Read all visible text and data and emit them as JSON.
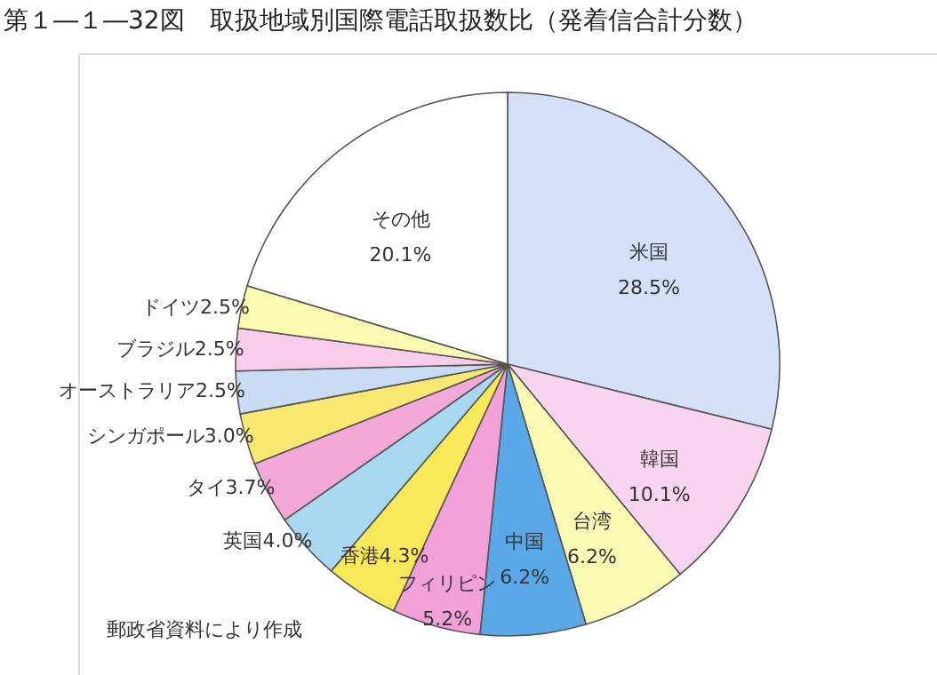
{
  "chart_data": {
    "type": "pie",
    "title": "第１―１―32図　取扱地域別国際電話取扱数比（発着信合計分数）",
    "categories": [
      "米国",
      "韓国",
      "台湾",
      "中国",
      "フィリピン",
      "香港",
      "英国",
      "タイ",
      "シンガポール",
      "オーストラリア",
      "ブラジル",
      "ドイツ",
      "その他"
    ],
    "values": [
      28.5,
      10.1,
      6.2,
      6.2,
      5.2,
      4.3,
      4.0,
      3.7,
      3.0,
      2.5,
      2.5,
      2.5,
      20.1
    ],
    "value_labels": [
      "28.5%",
      "10.1%",
      "6.2%",
      "6.2%",
      "5.2%",
      "4.3%",
      "4.0%",
      "3.7%",
      "3.0%",
      "2.5%",
      "2.5%",
      "2.5%",
      "20.1%"
    ],
    "colors": [
      "#d4e0f7",
      "#f9d4ee",
      "#fafab4",
      "#5aa8e8",
      "#f2a0d8",
      "#f8e85a",
      "#a8d8f0",
      "#f4a8d8",
      "#f8e870",
      "#c8dcf4",
      "#f8cce8",
      "#fafab0",
      "#ffffff"
    ],
    "annotations": [
      "郵政省資料により作成"
    ],
    "legend": false
  }
}
